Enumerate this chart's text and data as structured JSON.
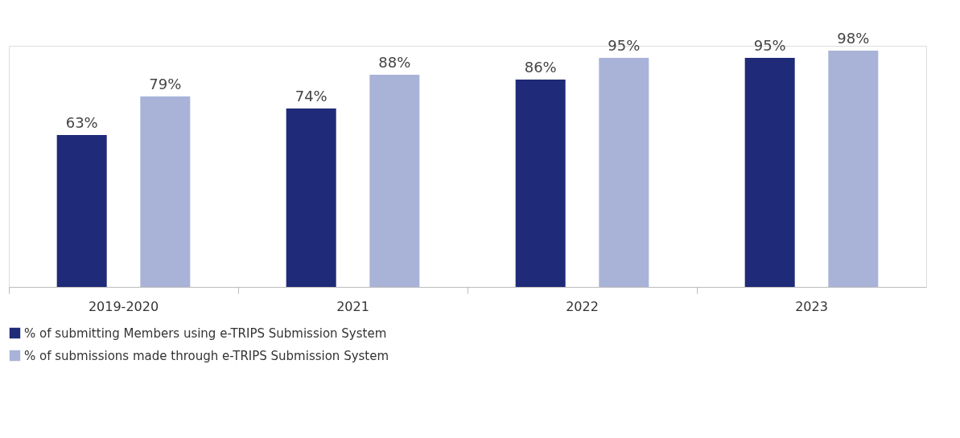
{
  "chart_data": {
    "type": "bar",
    "categories": [
      "2019-2020",
      "2021",
      "2022",
      "2023"
    ],
    "series": [
      {
        "name": "% of submitting Members using e-TRIPS Submission System",
        "color": "#1f2a78",
        "values": [
          63,
          74,
          86,
          95
        ],
        "value_labels": [
          "63%",
          "74%",
          "86%",
          "95%"
        ]
      },
      {
        "name": "% of submissions made through e-TRIPS Submission System",
        "color": "#a9b3d8",
        "values": [
          79,
          88,
          95,
          98
        ],
        "value_labels": [
          "79%",
          "88%",
          "95%",
          "98%"
        ]
      }
    ],
    "legend": "bottom",
    "grid": false
  }
}
